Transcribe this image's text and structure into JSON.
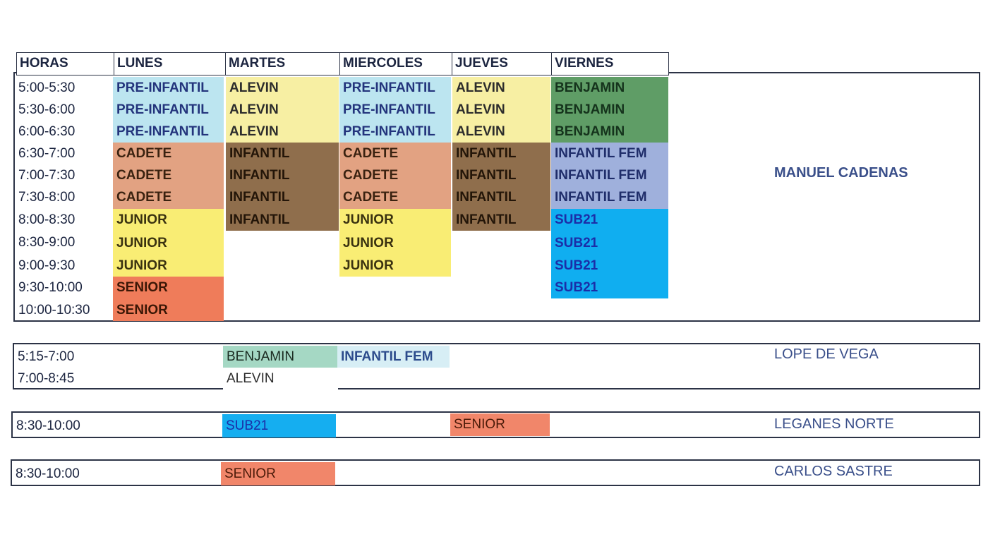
{
  "header": {
    "horas": "HORAS",
    "days": [
      "LUNES",
      "MARTES",
      "MIERCOLES",
      "JUEVES",
      "VIERNES"
    ]
  },
  "main": {
    "times": [
      "5:00-5:30",
      "5:30-6:00",
      "6:00-6:30",
      "6:30-7:00",
      "7:00-7:30",
      "7:30-8:00",
      "8:00-8:30",
      "8:30-9:00",
      "9:00-9:30",
      "9:30-10:00",
      "10:00-10:30"
    ],
    "venue": "MANUEL CADENAS",
    "lunes": [
      "PRE-INFANTIL",
      "PRE-INFANTIL",
      "PRE-INFANTIL",
      "CADETE",
      "CADETE",
      "CADETE",
      "JUNIOR",
      "JUNIOR",
      "JUNIOR",
      "SENIOR",
      "SENIOR"
    ],
    "martes": [
      "ALEVIN",
      "ALEVIN",
      "ALEVIN",
      "INFANTIL",
      "INFANTIL",
      "INFANTIL",
      "INFANTIL"
    ],
    "miercoles": [
      "PRE-INFANTIL",
      "PRE-INFANTIL",
      "PRE-INFANTIL",
      "CADETE",
      "CADETE",
      "CADETE",
      "JUNIOR",
      "JUNIOR",
      "JUNIOR"
    ],
    "jueves": [
      "ALEVIN",
      "ALEVIN",
      "ALEVIN",
      "INFANTIL",
      "INFANTIL",
      "INFANTIL",
      "INFANTIL"
    ],
    "viernes": [
      "BENJAMIN",
      "BENJAMIN",
      "BENJAMIN",
      "INFANTIL FEM",
      "INFANTIL FEM",
      "INFANTIL FEM",
      "SUB21",
      "SUB21",
      "SUB21",
      "SUB21"
    ]
  },
  "lope": {
    "times": [
      "5:15-7:00",
      "7:00-8:45"
    ],
    "martes": [
      "BENJAMIN",
      "ALEVIN"
    ],
    "miercoles": "INFANTIL FEM",
    "venue": "LOPE DE VEGA"
  },
  "leganes": {
    "time": "8:30-10:00",
    "martes": "SUB21",
    "jueves": "SENIOR",
    "venue": "LEGANES NORTE"
  },
  "carlos": {
    "time": "8:30-10:00",
    "martes": "SENIOR",
    "venue": "CARLOS SASTRE"
  }
}
